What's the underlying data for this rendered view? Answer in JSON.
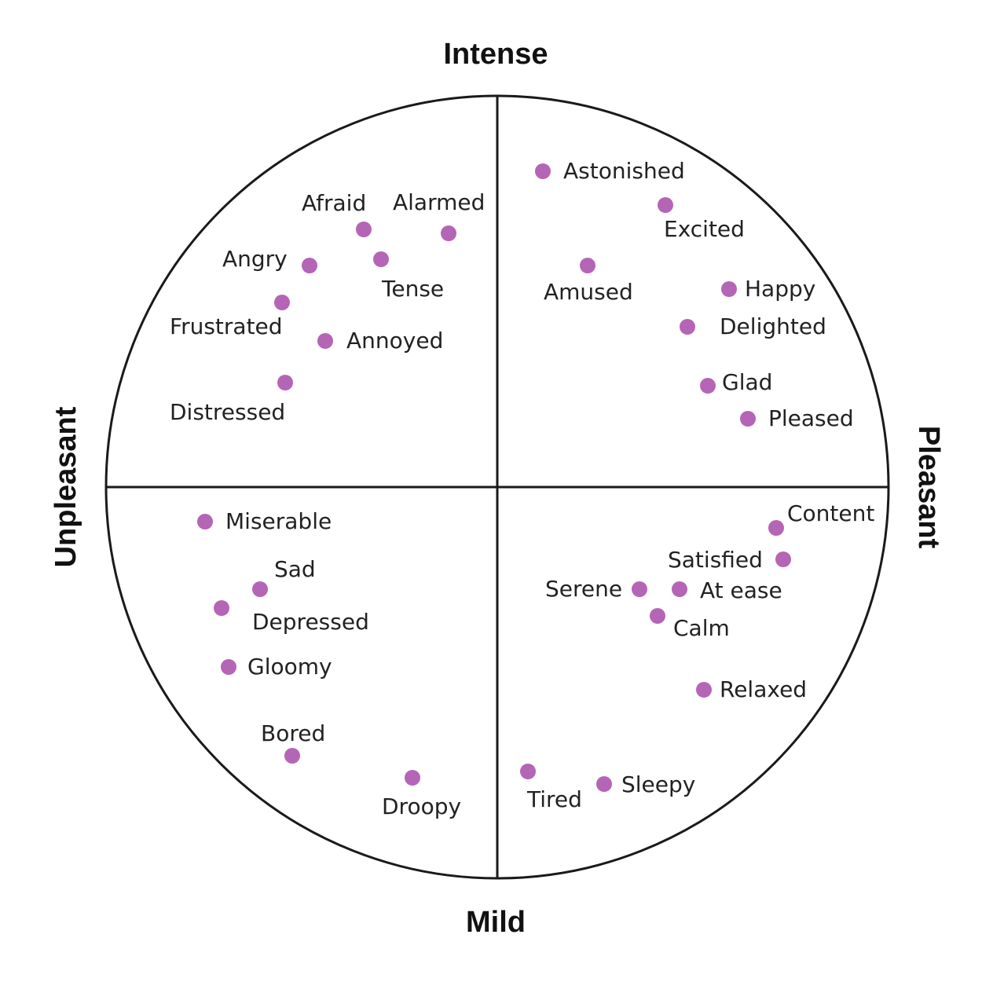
{
  "axes": {
    "top": "Intense",
    "bottom": "Mild",
    "left": "Unpleasant",
    "right": "Pleasant"
  },
  "colors": {
    "dot": "#b565b5",
    "line": "#1a1a1a"
  },
  "emotions": [
    {
      "label": "Astonished"
    },
    {
      "label": "Excited"
    },
    {
      "label": "Amused"
    },
    {
      "label": "Happy"
    },
    {
      "label": "Delighted"
    },
    {
      "label": "Glad"
    },
    {
      "label": "Pleased"
    },
    {
      "label": "Afraid"
    },
    {
      "label": "Alarmed"
    },
    {
      "label": "Angry"
    },
    {
      "label": "Tense"
    },
    {
      "label": "Frustrated"
    },
    {
      "label": "Annoyed"
    },
    {
      "label": "Distressed"
    },
    {
      "label": "Miserable"
    },
    {
      "label": "Sad"
    },
    {
      "label": "Depressed"
    },
    {
      "label": "Gloomy"
    },
    {
      "label": "Bored"
    },
    {
      "label": "Droopy"
    },
    {
      "label": "Content"
    },
    {
      "label": "Satisfied"
    },
    {
      "label": "Serene"
    },
    {
      "label": "At ease"
    },
    {
      "label": "Calm"
    },
    {
      "label": "Relaxed"
    },
    {
      "label": "Tired"
    },
    {
      "label": "Sleepy"
    }
  ]
}
